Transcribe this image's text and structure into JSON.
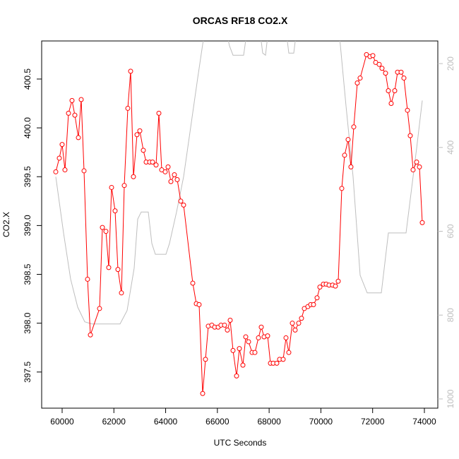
{
  "chart_data": {
    "type": "line",
    "title": "ORCAS RF18 CO2.X",
    "x_label": "UTC Seconds",
    "y_label": "CO2.X",
    "xlim": [
      59209,
      74519
    ],
    "xticks": [
      60000,
      62000,
      64000,
      66000,
      68000,
      70000,
      72000,
      74000
    ],
    "ylim": [
      397.13,
      400.89
    ],
    "yticks": [
      397.5,
      {
        "value": 398,
        "label": "398.0"
      },
      398.5,
      {
        "value": 399,
        "label": "399.0"
      },
      399.5,
      {
        "value": 400,
        "label": "400.0"
      },
      400.5
    ],
    "y2lim": [
      1022,
      146
    ],
    "y2ticks": [
      200,
      400,
      600,
      800,
      1000
    ],
    "series": [
      {
        "color": "#ff0000",
        "markers": true,
        "x": [
          59754,
          59891,
          60000,
          60109,
          60246,
          60382,
          60491,
          60628,
          60737,
          60846,
          60982,
          61092,
          61446,
          61556,
          61692,
          61801,
          61910,
          62047,
          62156,
          62292,
          62402,
          62538,
          62647,
          62756,
          62893,
          63002,
          63138,
          63248,
          63384,
          63493,
          63630,
          63739,
          63848,
          63984,
          64094,
          64203,
          64339,
          64448,
          64585,
          64694,
          65049,
          65185,
          65294,
          65431,
          65540,
          65649,
          65785,
          65895,
          66031,
          66140,
          66277,
          66386,
          66495,
          66604,
          66741,
          66850,
          66986,
          67096,
          67205,
          67341,
          67450,
          67587,
          67696,
          67805,
          67941,
          68051,
          68160,
          68296,
          68405,
          68542,
          68651,
          68760,
          68897,
          69006,
          69142,
          69251,
          69360,
          69497,
          69606,
          69715,
          69852,
          69961,
          70097,
          70206,
          70316,
          70452,
          70561,
          70670,
          70807,
          70916,
          71052,
          71161,
          71271,
          71407,
          71516,
          71762,
          71898,
          72008,
          72117,
          72253,
          72362,
          72499,
          72608,
          72717,
          72854,
          72963,
          73099,
          73208,
          73345,
          73454,
          73563,
          73700,
          73809,
          73918
        ],
        "values": [
          399.55,
          399.69,
          399.83,
          399.57,
          400.15,
          400.28,
          400.13,
          399.9,
          400.29,
          399.56,
          398.45,
          397.88,
          398.15,
          398.98,
          398.94,
          398.57,
          399.39,
          399.15,
          398.55,
          398.31,
          399.41,
          400.2,
          400.58,
          399.5,
          399.93,
          399.97,
          399.77,
          399.65,
          399.65,
          399.65,
          399.62,
          400.15,
          399.57,
          399.55,
          399.6,
          399.45,
          399.52,
          399.47,
          399.25,
          399.21,
          398.41,
          398.2,
          398.19,
          397.28,
          397.63,
          397.97,
          397.98,
          397.96,
          397.96,
          397.98,
          397.98,
          397.93,
          398.03,
          397.72,
          397.46,
          397.74,
          397.57,
          397.86,
          397.81,
          397.7,
          397.7,
          397.85,
          397.96,
          397.86,
          397.87,
          397.59,
          397.59,
          397.59,
          397.63,
          397.63,
          397.85,
          397.7,
          398.0,
          397.93,
          398.0,
          398.05,
          398.15,
          398.17,
          398.19,
          398.19,
          398.26,
          398.37,
          398.4,
          398.4,
          398.39,
          398.39,
          398.38,
          398.43,
          399.38,
          399.72,
          399.88,
          399.6,
          400.01,
          400.46,
          400.51,
          400.75,
          400.73,
          400.74,
          400.67,
          400.65,
          400.61,
          400.56,
          400.38,
          400.25,
          400.38,
          400.57,
          400.57,
          400.51,
          400.18,
          399.92,
          399.57,
          399.65,
          399.6,
          399.03
        ]
      },
      {
        "color": "#bebebe",
        "markers": false,
        "axis": "y2",
        "x": [
          59754,
          60055,
          60327,
          60600,
          60873,
          61146,
          62238,
          62511,
          62784,
          62920,
          63057,
          63330,
          63466,
          63602,
          64012,
          64148,
          64421,
          64694,
          64967,
          65240,
          65513,
          66331,
          66468,
          66604,
          67013,
          67150,
          67641,
          67750,
          67859,
          67969,
          68651,
          68760,
          68951,
          69060,
          70698,
          70970,
          71243,
          71516,
          71789,
          72335,
          72608,
          73290,
          73427,
          73700,
          73918
        ],
        "values": [
          470,
          604,
          714,
          781,
          816,
          821,
          821,
          789,
          688,
          571,
          554,
          554,
          629,
          655,
          655,
          629,
          554,
          470,
          352,
          234,
          120,
          120,
          158,
          180,
          180,
          120,
          120,
          175,
          180,
          120,
          120,
          175,
          175,
          120,
          120,
          301,
          470,
          705,
          747,
          747,
          604,
          604,
          537,
          402,
          288
        ]
      }
    ]
  }
}
